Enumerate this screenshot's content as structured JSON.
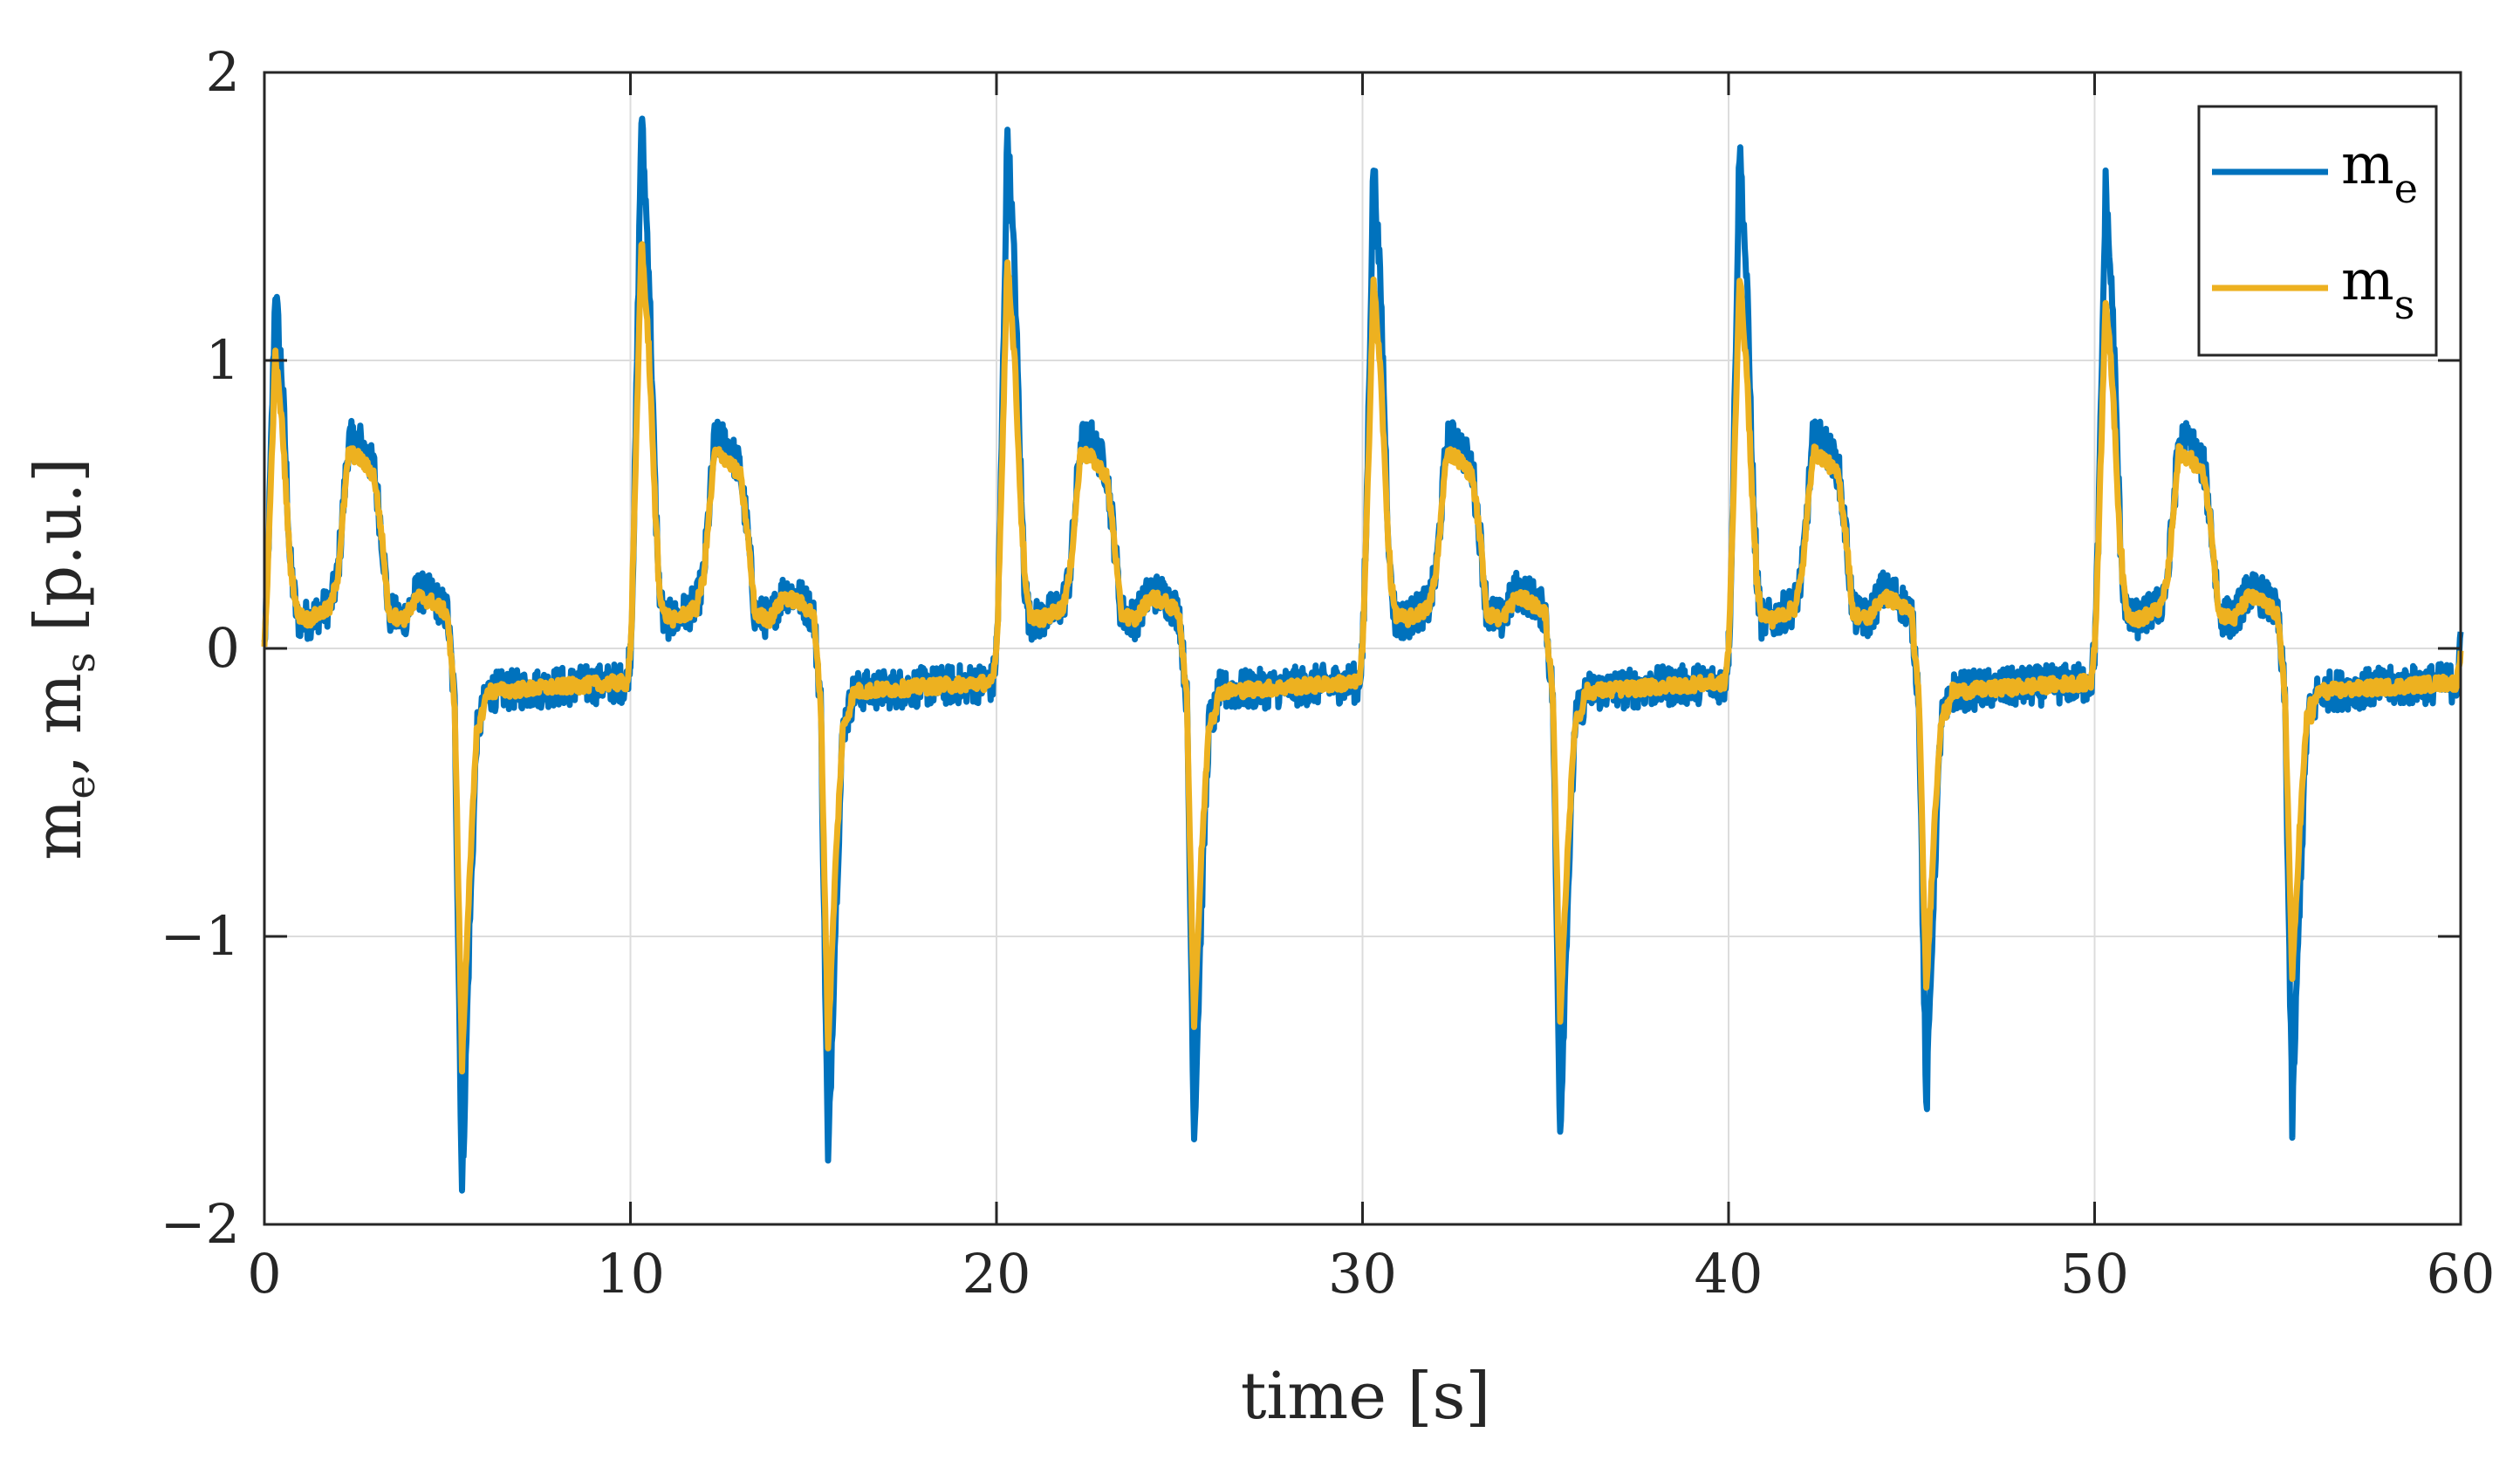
{
  "chart_data": {
    "type": "line",
    "title": "",
    "xlabel": "time [s]",
    "ylabel": {
      "m1": "m",
      "sub1": "e",
      "sep": ", ",
      "m2": "m",
      "sub2": "s",
      "unit": " [p.u.]"
    },
    "xlim": [
      0,
      60
    ],
    "ylim": [
      -2,
      2
    ],
    "xticks": [
      0,
      10,
      20,
      30,
      40,
      50,
      60
    ],
    "xtick_labels": [
      "0",
      "10",
      "20",
      "30",
      "40",
      "50",
      "60"
    ],
    "yticks": [
      -2,
      -1,
      0,
      1,
      2
    ],
    "ytick_labels": [
      "−2",
      "−1",
      "0",
      "1",
      "2"
    ],
    "grid": true,
    "legend_position": "top-right",
    "cycle_period_s": 10,
    "series": [
      {
        "name": "m_e",
        "label": "m",
        "subscript": "e",
        "color": "#0072BD",
        "noise_amplitude": 0.07,
        "cycle_profile": [
          [
            0.0,
            0.0
          ],
          [
            0.1,
            0.3
          ],
          [
            0.3,
            1.25
          ],
          [
            0.5,
            0.9
          ],
          [
            0.7,
            0.3
          ],
          [
            0.9,
            0.1
          ],
          [
            1.2,
            0.1
          ],
          [
            1.8,
            0.15
          ],
          [
            2.0,
            0.25
          ],
          [
            2.3,
            0.72
          ],
          [
            2.6,
            0.72
          ],
          [
            3.0,
            0.62
          ],
          [
            3.2,
            0.4
          ],
          [
            3.4,
            0.12
          ],
          [
            3.8,
            0.1
          ],
          [
            4.2,
            0.2
          ],
          [
            4.6,
            0.18
          ],
          [
            5.0,
            0.12
          ],
          [
            5.2,
            -0.2
          ],
          [
            5.4,
            -1.9
          ],
          [
            5.6,
            -1.0
          ],
          [
            5.8,
            -0.3
          ],
          [
            6.1,
            -0.15
          ],
          [
            9.6,
            -0.12
          ],
          [
            9.9,
            -0.12
          ],
          [
            10.0,
            0.0
          ]
        ],
        "peaks": [
          1.25,
          1.85,
          1.8,
          1.7,
          1.75,
          1.6
        ],
        "troughs": [
          -1.9,
          -1.8,
          -1.7,
          -1.68,
          -1.62,
          -1.65
        ]
      },
      {
        "name": "m_s",
        "label": "m",
        "subscript": "s",
        "color": "#EDB120",
        "noise_amplitude": 0.025,
        "cycle_profile": [
          [
            0.0,
            0.0
          ],
          [
            0.1,
            0.3
          ],
          [
            0.3,
            1.02
          ],
          [
            0.5,
            0.75
          ],
          [
            0.7,
            0.3
          ],
          [
            0.9,
            0.12
          ],
          [
            1.2,
            0.1
          ],
          [
            1.8,
            0.14
          ],
          [
            2.0,
            0.25
          ],
          [
            2.3,
            0.68
          ],
          [
            2.6,
            0.66
          ],
          [
            3.0,
            0.6
          ],
          [
            3.2,
            0.4
          ],
          [
            3.4,
            0.12
          ],
          [
            3.8,
            0.1
          ],
          [
            4.2,
            0.18
          ],
          [
            4.6,
            0.16
          ],
          [
            5.0,
            0.12
          ],
          [
            5.2,
            -0.2
          ],
          [
            5.4,
            -1.45
          ],
          [
            5.6,
            -0.8
          ],
          [
            5.8,
            -0.3
          ],
          [
            6.1,
            -0.15
          ],
          [
            9.6,
            -0.12
          ],
          [
            9.9,
            -0.12
          ],
          [
            10.0,
            0.0
          ]
        ],
        "peaks": [
          1.02,
          1.42,
          1.35,
          1.28,
          1.3,
          1.22
        ],
        "troughs": [
          -1.45,
          -1.38,
          -1.3,
          -1.28,
          -1.2,
          -1.15
        ]
      }
    ]
  }
}
